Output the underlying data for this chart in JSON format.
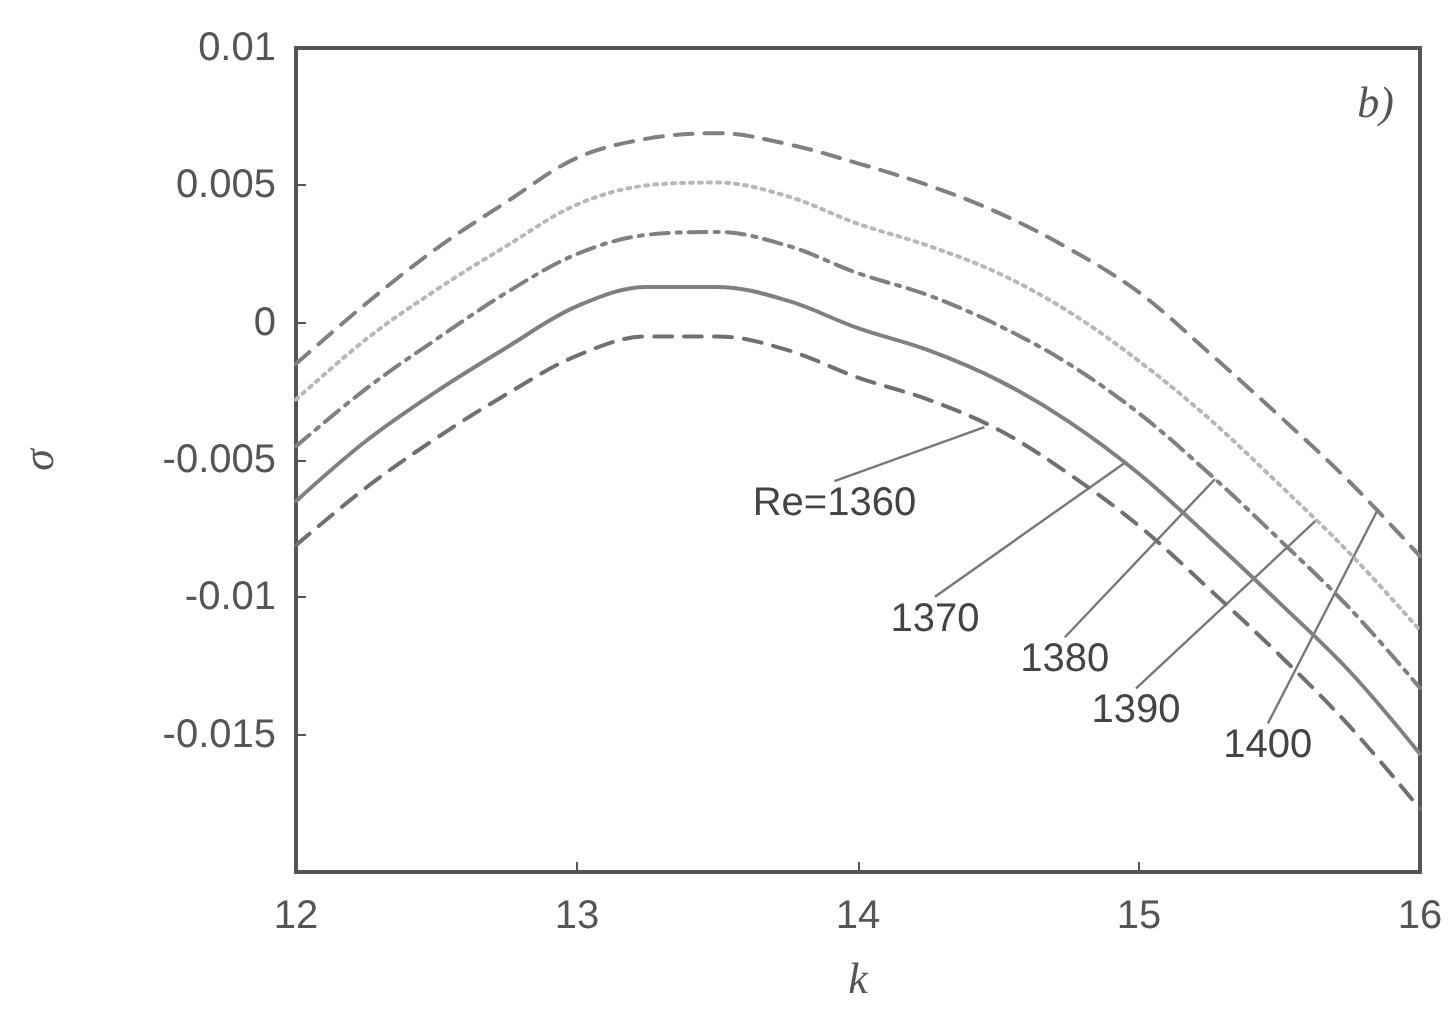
{
  "chart_data": {
    "type": "line",
    "xlabel": "k",
    "ylabel": "σ",
    "x": [
      12,
      12.25,
      12.5,
      12.75,
      13,
      13.25,
      13.5,
      13.75,
      14,
      14.25,
      14.5,
      14.75,
      15,
      15.25,
      15.5,
      15.75,
      16
    ],
    "series": [
      {
        "color": "#707070",
        "line_style": "dashed",
        "values": [
          -0.0081,
          -0.006,
          -0.0042,
          -0.0026,
          -0.0012,
          -0.0005,
          -0.0005,
          -0.001,
          -0.002,
          -0.0028,
          -0.0039,
          -0.0055,
          -0.0074,
          -0.0097,
          -0.0121,
          -0.0147,
          -0.0177
        ]
      },
      {
        "color": "#808080",
        "line_style": "solid",
        "values": [
          -0.0065,
          -0.0043,
          -0.0025,
          -0.0009,
          0.0006,
          0.0013,
          0.0013,
          0.0008,
          -0.0002,
          -0.001,
          -0.0021,
          -0.0036,
          -0.0055,
          -0.0078,
          -0.0102,
          -0.0127,
          -0.0157
        ]
      },
      {
        "color": "#808080",
        "line_style": "dashdot",
        "values": [
          -0.0045,
          -0.0024,
          -0.0006,
          0.0011,
          0.0025,
          0.0032,
          0.0033,
          0.0028,
          0.0018,
          0.001,
          -0.0001,
          -0.0015,
          -0.0033,
          -0.0055,
          -0.0079,
          -0.0104,
          -0.0133
        ]
      },
      {
        "color": "#b8b8b8",
        "line_style": "dotted",
        "values": [
          -0.0028,
          -0.0006,
          0.0012,
          0.0028,
          0.0043,
          0.005,
          0.0051,
          0.0046,
          0.0036,
          0.0028,
          0.0018,
          0.0004,
          -0.0014,
          -0.0035,
          -0.0059,
          -0.0084,
          -0.0112
        ]
      },
      {
        "color": "#808080",
        "line_style": "dashed",
        "values": [
          -0.0015,
          0.0007,
          0.0027,
          0.0044,
          0.006,
          0.0067,
          0.0069,
          0.0065,
          0.0058,
          0.005,
          0.004,
          0.0027,
          0.0011,
          -0.0011,
          -0.0034,
          -0.0058,
          -0.0085
        ]
      }
    ],
    "xlim": [
      12,
      16
    ],
    "xticks": [
      12,
      13,
      14,
      15,
      16
    ],
    "ylim": [
      -0.02,
      0.01
    ],
    "yticks": [
      {
        "value": -0.02,
        "label": null
      },
      -0.015,
      -0.01,
      -0.005,
      0,
      0.005,
      0.01
    ],
    "annotations": [
      "b)",
      {
        "text": "Re=1360",
        "x": 14.45,
        "y": -0.0038
      },
      {
        "text": "1370",
        "x": 14.95,
        "y": -0.0051
      },
      {
        "text": "1380",
        "x": 15.27,
        "y": -0.0057
      },
      {
        "text": "1390",
        "x": 15.63,
        "y": -0.0072
      },
      {
        "text": "1400",
        "x": 15.85,
        "y": -0.0068
      }
    ],
    "grid": false,
    "marker": "none"
  }
}
